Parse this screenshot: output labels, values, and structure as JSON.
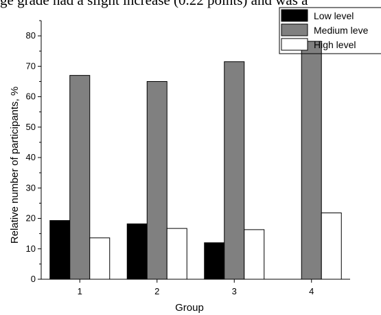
{
  "page_text": "ge grade had a slight increase (0.22 points) and was a",
  "chart_data": {
    "type": "bar",
    "categories": [
      "1",
      "2",
      "3",
      "4"
    ],
    "series": [
      {
        "name": "Low level",
        "color": "#000000",
        "values": [
          19.3,
          18.2,
          12.0,
          0
        ]
      },
      {
        "name": "Medium leve",
        "color": "#808080",
        "values": [
          67.0,
          65.0,
          71.5,
          78.2
        ]
      },
      {
        "name": "High level",
        "color": "#ffffff",
        "values": [
          13.6,
          16.7,
          16.3,
          21.8
        ]
      }
    ],
    "xlabel": "Group",
    "ylabel": "Relative number of participants, %",
    "ylim": [
      0,
      85
    ],
    "yticks": [
      0,
      10,
      20,
      30,
      40,
      50,
      60,
      70,
      80
    ],
    "legend_position": "top-right",
    "grid": false
  }
}
